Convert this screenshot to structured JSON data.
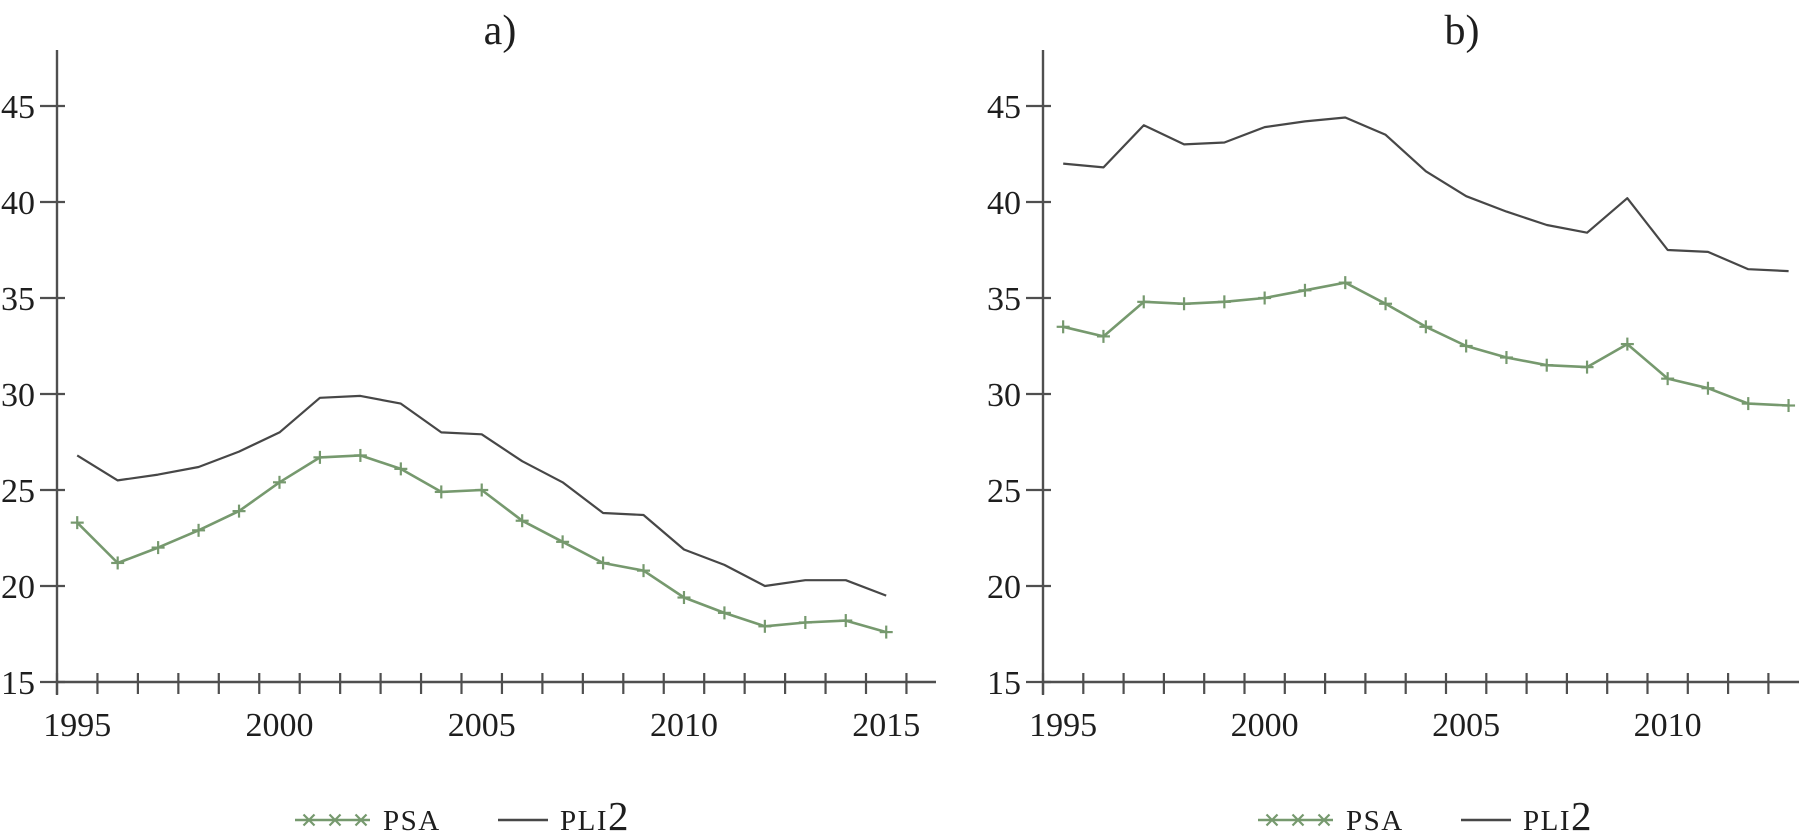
{
  "page": {
    "background": "#ffffff"
  },
  "colors": {
    "psa_green": "#76996e",
    "pli2_black": "#474747",
    "axis": "#4f4f4f",
    "text": "#1e1e1e"
  },
  "legend": {
    "entries": [
      "PSA",
      "PLI2"
    ],
    "position": "bottom-center"
  },
  "chart_data": [
    {
      "type": "line",
      "panel": "a",
      "title": "a)",
      "x": [
        1995,
        1996,
        1997,
        1998,
        1999,
        2000,
        2001,
        2002,
        2003,
        2004,
        2005,
        2006,
        2007,
        2008,
        2009,
        2010,
        2011,
        2012,
        2013,
        2014,
        2015
      ],
      "series": [
        {
          "name": "PSA",
          "marker": "plus",
          "color_key": "psa_green",
          "values": [
            23.3,
            21.2,
            22.0,
            22.9,
            23.9,
            25.4,
            26.7,
            26.8,
            26.1,
            24.9,
            25.0,
            23.4,
            22.3,
            21.2,
            20.8,
            19.4,
            18.6,
            17.9,
            18.1,
            18.2,
            17.6
          ]
        },
        {
          "name": "PLI2",
          "marker": "none",
          "color_key": "pli2_black",
          "values": [
            26.8,
            25.5,
            25.8,
            26.2,
            27.0,
            28.0,
            29.8,
            29.9,
            29.5,
            28.0,
            27.9,
            26.5,
            25.4,
            23.8,
            23.7,
            21.9,
            21.1,
            20.0,
            20.3,
            20.3,
            19.5
          ]
        }
      ],
      "xlabel": "",
      "ylabel": "",
      "ylim": [
        15,
        45
      ],
      "yticks": [
        15,
        20,
        25,
        30,
        35,
        40,
        45
      ],
      "xticks_labeled": [
        1995,
        2000,
        2005,
        2010,
        2015
      ],
      "xticks_minor_every_years": 1,
      "grid": false,
      "legend_position": "bottom"
    },
    {
      "type": "line",
      "panel": "b",
      "title": "b)",
      "x": [
        1995,
        1996,
        1997,
        1998,
        1999,
        2000,
        2001,
        2002,
        2003,
        2004,
        2005,
        2006,
        2007,
        2008,
        2009,
        2010,
        2011,
        2012,
        2013
      ],
      "series": [
        {
          "name": "PSA",
          "marker": "plus",
          "color_key": "psa_green",
          "values": [
            33.5,
            33.0,
            34.8,
            34.7,
            34.8,
            35.0,
            35.4,
            35.8,
            34.7,
            33.5,
            32.5,
            31.9,
            31.5,
            31.4,
            32.6,
            30.8,
            30.3,
            29.5,
            29.4
          ]
        },
        {
          "name": "PLI2",
          "marker": "none",
          "color_key": "pli2_black",
          "values": [
            42.0,
            41.8,
            44.0,
            43.0,
            43.1,
            43.9,
            44.2,
            44.4,
            43.5,
            41.6,
            40.3,
            39.5,
            38.8,
            38.4,
            40.2,
            37.5,
            37.4,
            36.5,
            36.4
          ]
        }
      ],
      "xlabel": "",
      "ylabel": "",
      "ylim": [
        15,
        45
      ],
      "yticks": [
        15,
        20,
        25,
        30,
        35,
        40,
        45
      ],
      "xticks_labeled": [
        1995,
        2000,
        2005,
        2010
      ],
      "xticks_minor_every_years": 1,
      "grid": false,
      "legend_position": "bottom",
      "right_edge_cropped": true
    }
  ]
}
